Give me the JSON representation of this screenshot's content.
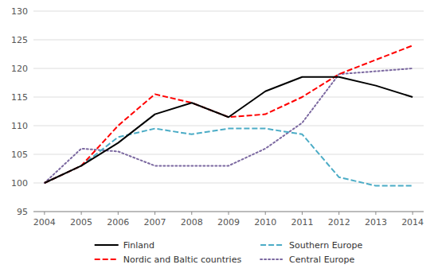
{
  "chart_data": {
    "type": "line",
    "x": [
      2004,
      2005,
      2006,
      2007,
      2008,
      2009,
      2010,
      2011,
      2012,
      2013,
      2014
    ],
    "series": [
      {
        "name": "Finland",
        "color": "#000000",
        "line_style": "solid",
        "values": [
          100,
          103,
          107,
          112,
          114,
          111.5,
          116,
          118.5,
          118.5,
          117,
          115
        ]
      },
      {
        "name": "Nordic and Baltic countries",
        "color": "#FF0000",
        "line_style": "dashed",
        "values": [
          100,
          103,
          110,
          115.5,
          114,
          111.5,
          112,
          115,
          119,
          121.5,
          124
        ]
      },
      {
        "name": "Southern Europe",
        "color": "#4BACC6",
        "line_style": "dashed",
        "values": [
          100,
          103,
          108,
          109.5,
          108.5,
          109.5,
          109.5,
          108.5,
          101,
          99.5,
          99.5
        ]
      },
      {
        "name": "Central Europe",
        "color": "#7B68A0",
        "line_style": "dotted",
        "values": [
          100,
          106,
          105.5,
          103,
          103,
          103,
          106,
          110.5,
          119,
          119.5,
          120
        ]
      }
    ],
    "xlim": [
      2003.7,
      2014.3
    ],
    "xticks": [
      2004,
      2005,
      2006,
      2007,
      2008,
      2009,
      2010,
      2011,
      2012,
      2013,
      2014
    ],
    "ylim": [
      95,
      130
    ],
    "yticks": [
      95,
      100,
      105,
      110,
      115,
      120,
      125,
      130
    ],
    "grid": true,
    "legend": "bottom"
  }
}
